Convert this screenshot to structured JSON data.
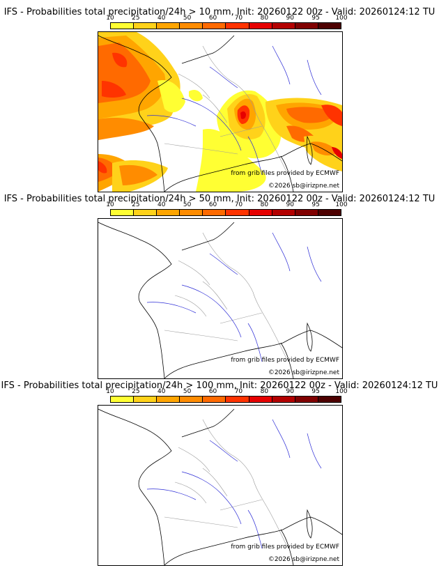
{
  "colorbar": {
    "ticks": [
      "10",
      "25",
      "40",
      "50",
      "60",
      "70",
      "80",
      "90",
      "95",
      "100"
    ],
    "colors": [
      "#ffff33",
      "#ffd21a",
      "#ffa500",
      "#ff8c00",
      "#ff6a00",
      "#ff3300",
      "#e60000",
      "#b30000",
      "#800000",
      "#4d0000"
    ]
  },
  "panels": [
    {
      "title": "IFS - Probabilities total precipitation/24h > 10 mm, Init: 20260122 00z - Valid: 20260124:12 TU",
      "source_note": "from grib files provided by ECMWF",
      "copyright": "©2026 sb@irizpne.net"
    },
    {
      "title": "IFS - Probabilities total precipitation/24h > 50 mm, Init: 20260122 00z - Valid: 20260124:12 TU",
      "source_note": "from grib files provided by ECMWF",
      "copyright": "©2026 sb@irizpne.net"
    },
    {
      "title": "IFS - Probabilities total precipitation/24h > 100 mm, Init: 20260122 00z - Valid: 20260124:12 TU",
      "source_note": "from grib files provided by ECMWF",
      "copyright": "©2026 sb@irizpne.net"
    }
  ],
  "colors": {
    "coast": "#000000",
    "rivers": "#2b2bd6",
    "borders": "#9a9a9a"
  }
}
